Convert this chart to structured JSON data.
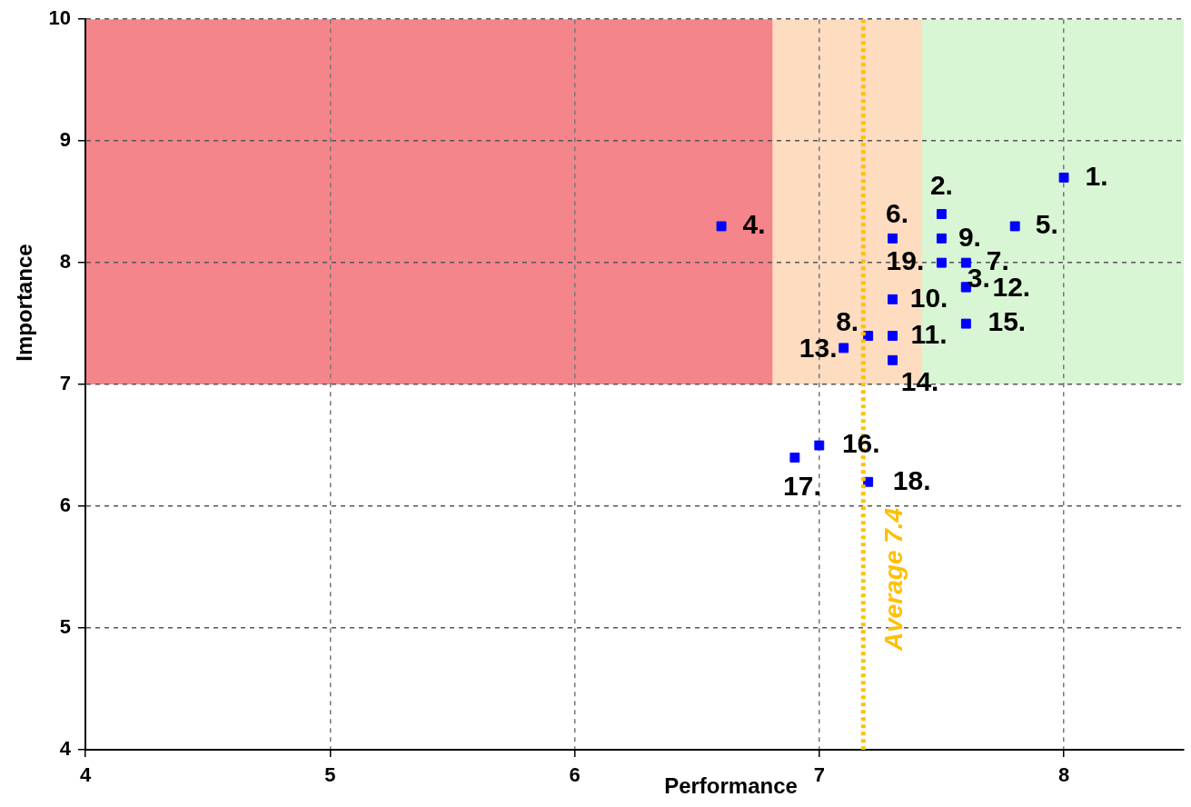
{
  "chart_data": {
    "type": "scatter",
    "xlabel": "Performance",
    "ylabel": "Importance",
    "xlim": [
      4,
      8.49
    ],
    "ylim": [
      4,
      10
    ],
    "xticks": [
      4,
      5,
      6,
      7,
      8
    ],
    "yticks": [
      4,
      5,
      6,
      7,
      8,
      9,
      10
    ],
    "grid": true,
    "legend": false,
    "marker": "square",
    "series": [
      {
        "color": "#0000ff",
        "x": [
          8.0,
          7.5,
          7.6,
          6.6,
          7.8,
          7.3,
          7.6,
          7.2,
          7.5,
          7.3,
          7.3,
          7.6,
          7.1,
          7.3,
          7.6,
          7.0,
          6.9,
          7.2,
          7.5
        ],
        "values": [
          8.7,
          8.4,
          7.8,
          8.3,
          8.3,
          8.2,
          8.0,
          7.4,
          8.2,
          7.7,
          7.4,
          7.8,
          7.3,
          7.2,
          7.5,
          6.5,
          6.4,
          6.2,
          8.0
        ]
      }
    ],
    "annotations": [
      {
        "text": "1.",
        "x": 8.0,
        "y": 8.7
      },
      {
        "text": "2.",
        "x": 7.5,
        "y": 8.4
      },
      {
        "text": "3.",
        "x": 7.6,
        "y": 7.8
      },
      {
        "text": "4.",
        "x": 6.6,
        "y": 8.3
      },
      {
        "text": "5.",
        "x": 7.8,
        "y": 8.3
      },
      {
        "text": "6.",
        "x": 7.3,
        "y": 8.2
      },
      {
        "text": "7.",
        "x": 7.6,
        "y": 8.0
      },
      {
        "text": "8.",
        "x": 7.2,
        "y": 7.4
      },
      {
        "text": "9.",
        "x": 7.5,
        "y": 8.2
      },
      {
        "text": "10.",
        "x": 7.3,
        "y": 7.7
      },
      {
        "text": "11.",
        "x": 7.3,
        "y": 7.4
      },
      {
        "text": "12.",
        "x": 7.6,
        "y": 7.8
      },
      {
        "text": "13.",
        "x": 7.1,
        "y": 7.3
      },
      {
        "text": "14.",
        "x": 7.3,
        "y": 7.2
      },
      {
        "text": "15.",
        "x": 7.6,
        "y": 7.5
      },
      {
        "text": "16.",
        "x": 7.0,
        "y": 6.5
      },
      {
        "text": "17.",
        "x": 6.9,
        "y": 6.4
      },
      {
        "text": "18.",
        "x": 7.2,
        "y": 6.2
      },
      {
        "text": "19.",
        "x": 7.5,
        "y": 8.0
      }
    ],
    "bands": [
      {
        "axis": "x",
        "from": 4,
        "to": 6.81,
        "color": "#f4858a"
      },
      {
        "axis": "x",
        "from": 6.81,
        "to": 7.42,
        "color": "#fddcc0"
      },
      {
        "axis": "x",
        "from": 7.42,
        "to": 8.49,
        "color": "#d8f5d4"
      },
      {
        "axis": "y",
        "from": 4,
        "to": 7,
        "color": "#ffffff"
      }
    ],
    "ref_lines": [
      {
        "axis": "x",
        "value": 7.18,
        "label": "Average 7.4",
        "color": "#ffc000",
        "line_style": "dotted"
      }
    ]
  }
}
